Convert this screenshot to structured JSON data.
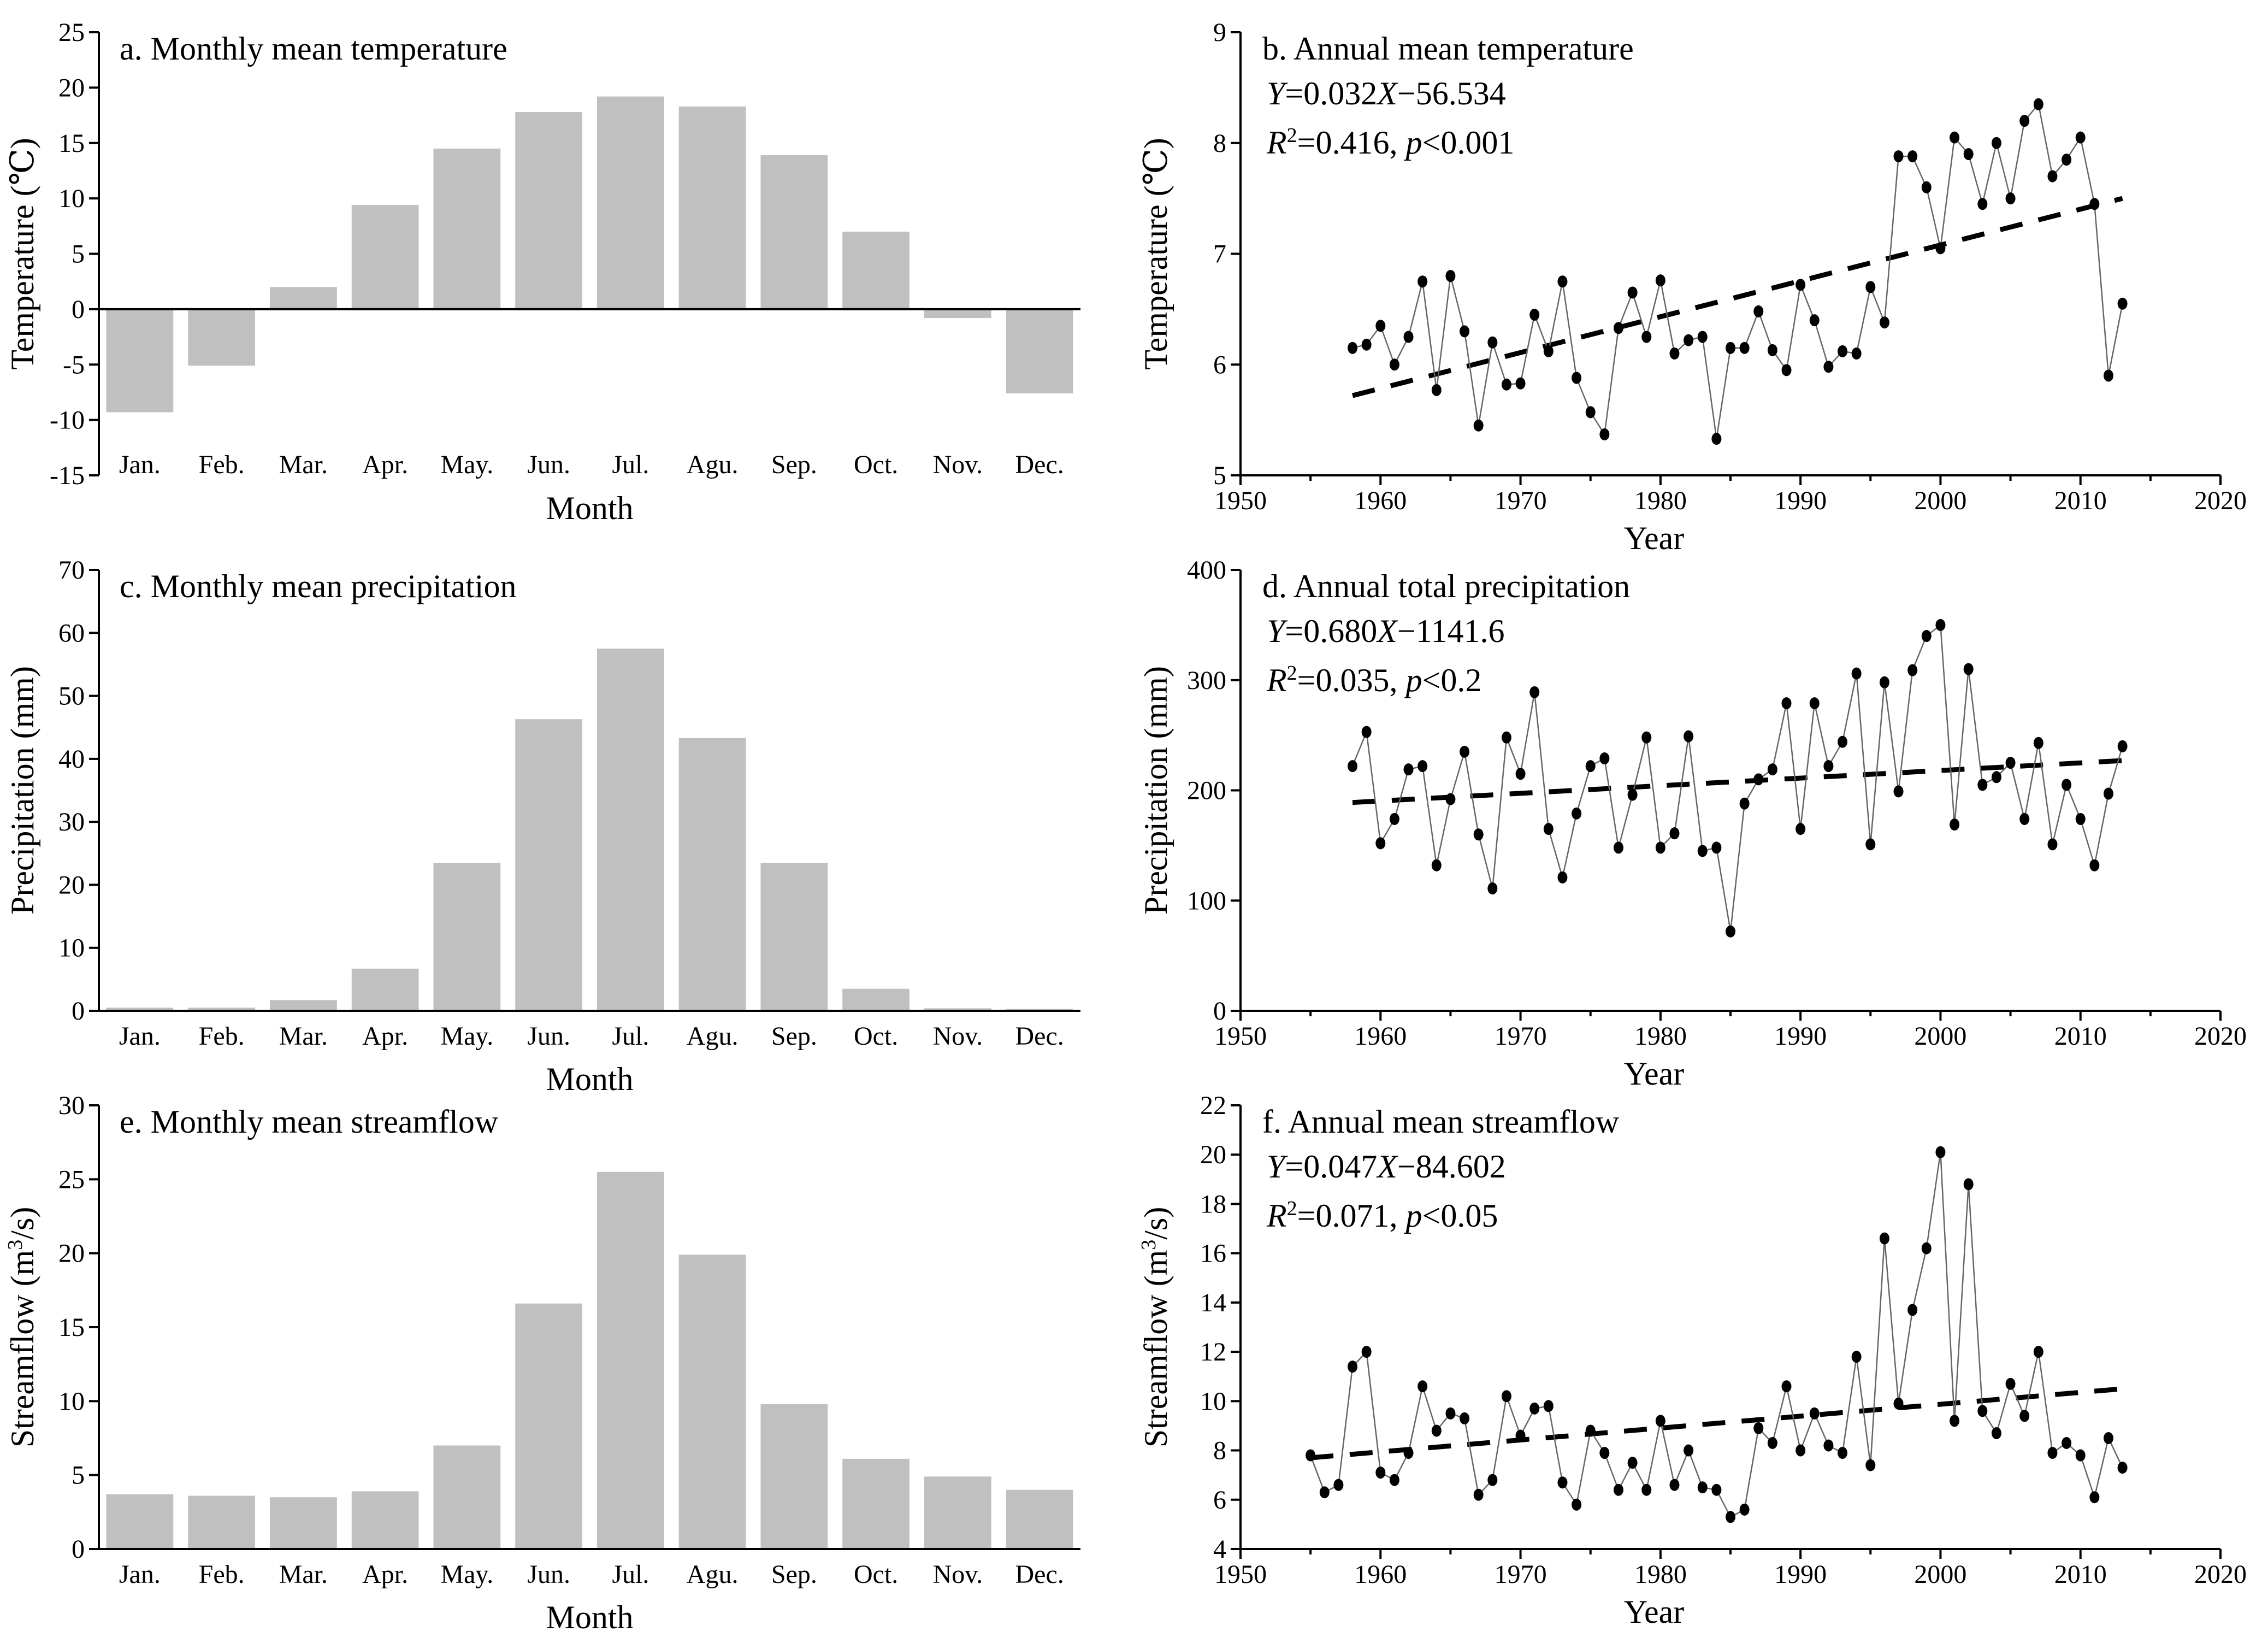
{
  "chart_data": [
    {
      "id": "a",
      "type": "bar",
      "title": "a. Monthly mean temperature",
      "xlabel": "Month",
      "ylabel": "Temperature (℃)",
      "categories": [
        "Jan.",
        "Feb.",
        "Mar.",
        "Apr.",
        "May.",
        "Jun.",
        "Jul.",
        "Agu.",
        "Sep.",
        "Oct.",
        "Nov.",
        "Dec."
      ],
      "values": [
        -9.3,
        -5.1,
        2.0,
        9.4,
        14.5,
        17.8,
        19.2,
        18.3,
        13.9,
        7.0,
        -0.8,
        -7.6
      ],
      "ylim": [
        -15,
        25
      ],
      "yticks": [
        -15,
        -10,
        -5,
        0,
        5,
        10,
        15,
        20,
        25
      ],
      "bar_color": "#c0c0c0"
    },
    {
      "id": "b",
      "type": "line",
      "title": "b. Annual mean temperature",
      "equation": "Y=0.032X−56.534",
      "stats": "R²=0.416, p<0.001",
      "xlabel": "Year",
      "ylabel": "Temperature (℃)",
      "x_start": 1958,
      "values": [
        6.15,
        6.18,
        6.35,
        6.0,
        6.25,
        6.75,
        5.77,
        6.8,
        6.3,
        5.45,
        6.2,
        5.82,
        5.83,
        6.45,
        6.12,
        6.75,
        5.88,
        5.57,
        5.37,
        6.33,
        6.65,
        6.25,
        6.76,
        6.1,
        6.22,
        6.25,
        5.33,
        6.15,
        6.15,
        6.48,
        6.13,
        5.95,
        6.72,
        6.4,
        5.98,
        6.12,
        6.1,
        6.7,
        6.38,
        7.88,
        7.88,
        7.6,
        7.05,
        8.05,
        7.9,
        7.45,
        8.0,
        7.5,
        8.2,
        8.35,
        7.7,
        7.85,
        8.05,
        7.45,
        5.9,
        6.55
      ],
      "trend": {
        "x": [
          1958,
          2013
        ],
        "y": [
          5.72,
          7.5
        ]
      },
      "xlim": [
        1950,
        2020
      ],
      "xticks": [
        1950,
        1960,
        1970,
        1980,
        1990,
        2000,
        2010,
        2020
      ],
      "ylim": [
        5,
        9
      ],
      "yticks": [
        5,
        6,
        7,
        8,
        9
      ]
    },
    {
      "id": "c",
      "type": "bar",
      "title": "c. Monthly mean precipitation",
      "xlabel": "Month",
      "ylabel": "Precipitation (mm)",
      "categories": [
        "Jan.",
        "Feb.",
        "Mar.",
        "Apr.",
        "May.",
        "Jun.",
        "Jul.",
        "Agu.",
        "Sep.",
        "Oct.",
        "Nov.",
        "Dec."
      ],
      "values": [
        0.5,
        0.5,
        1.7,
        6.7,
        23.5,
        46.3,
        57.5,
        43.3,
        23.5,
        3.5,
        0.4,
        0.3
      ],
      "ylim": [
        0,
        70
      ],
      "yticks": [
        0,
        10,
        20,
        30,
        40,
        50,
        60,
        70
      ],
      "bar_color": "#c0c0c0"
    },
    {
      "id": "d",
      "type": "line",
      "title": "d. Annual total precipitation",
      "equation": "Y=0.680X−1141.6",
      "stats": "R²=0.035, p<0.2",
      "xlabel": "Year",
      "ylabel": "Precipitation (mm)",
      "x_start": 1958,
      "values": [
        222,
        253,
        152,
        174,
        219,
        222,
        132,
        192,
        235,
        160,
        111,
        248,
        215,
        289,
        165,
        121,
        179,
        222,
        229,
        148,
        196,
        248,
        148,
        161,
        249,
        145,
        148,
        72,
        188,
        210,
        219,
        279,
        165,
        279,
        222,
        244,
        306,
        151,
        298,
        199,
        309,
        340,
        350,
        169,
        310,
        205,
        212,
        225,
        174,
        243,
        151,
        205,
        174,
        132,
        197,
        240
      ],
      "trend": {
        "x": [
          1958,
          2013
        ],
        "y": [
          189,
          227
        ]
      },
      "xlim": [
        1950,
        2020
      ],
      "xticks": [
        1950,
        1960,
        1970,
        1980,
        1990,
        2000,
        2010,
        2020
      ],
      "ylim": [
        0,
        400
      ],
      "yticks": [
        0,
        100,
        200,
        300,
        400
      ]
    },
    {
      "id": "e",
      "type": "bar",
      "title": "e. Monthly mean streamflow",
      "xlabel": "Month",
      "ylabel": "Streamflow (m³/s)",
      "categories": [
        "Jan.",
        "Feb.",
        "Mar.",
        "Apr.",
        "May.",
        "Jun.",
        "Jul.",
        "Agu.",
        "Sep.",
        "Oct.",
        "Nov.",
        "Dec."
      ],
      "values": [
        3.7,
        3.6,
        3.5,
        3.9,
        7.0,
        16.6,
        25.5,
        19.9,
        9.8,
        6.1,
        4.9,
        4.0
      ],
      "ylim": [
        0,
        30
      ],
      "yticks": [
        0,
        5,
        10,
        15,
        20,
        25,
        30
      ],
      "bar_color": "#c0c0c0"
    },
    {
      "id": "f",
      "type": "line",
      "title": "f. Annual mean streamflow",
      "equation": "Y=0.047X−84.602",
      "stats": "R²=0.071, p<0.05",
      "xlabel": "Year",
      "ylabel": "Streamflow (m³/s)",
      "x_start": 1955,
      "values": [
        7.8,
        6.3,
        6.6,
        11.4,
        12.0,
        7.1,
        6.8,
        7.9,
        10.6,
        8.8,
        9.5,
        9.3,
        6.2,
        6.8,
        10.2,
        8.6,
        9.7,
        9.8,
        6.7,
        5.8,
        8.8,
        7.9,
        6.4,
        7.5,
        6.4,
        9.2,
        6.6,
        8.0,
        6.5,
        6.4,
        5.3,
        5.6,
        8.9,
        8.3,
        10.6,
        8.0,
        9.5,
        8.2,
        7.9,
        11.8,
        7.4,
        16.6,
        9.9,
        13.7,
        16.2,
        20.1,
        9.2,
        18.8,
        9.6,
        8.7,
        10.7,
        9.4,
        12.0,
        7.9,
        8.3,
        7.8,
        6.1,
        8.5,
        7.3
      ],
      "trend": {
        "x": [
          1955,
          2013
        ],
        "y": [
          7.7,
          10.5
        ]
      },
      "xlim": [
        1950,
        2020
      ],
      "xticks": [
        1950,
        1960,
        1970,
        1980,
        1990,
        2000,
        2010,
        2020
      ],
      "ylim": [
        4,
        22
      ],
      "yticks": [
        4,
        6,
        8,
        10,
        12,
        14,
        16,
        18,
        20,
        22
      ]
    }
  ]
}
